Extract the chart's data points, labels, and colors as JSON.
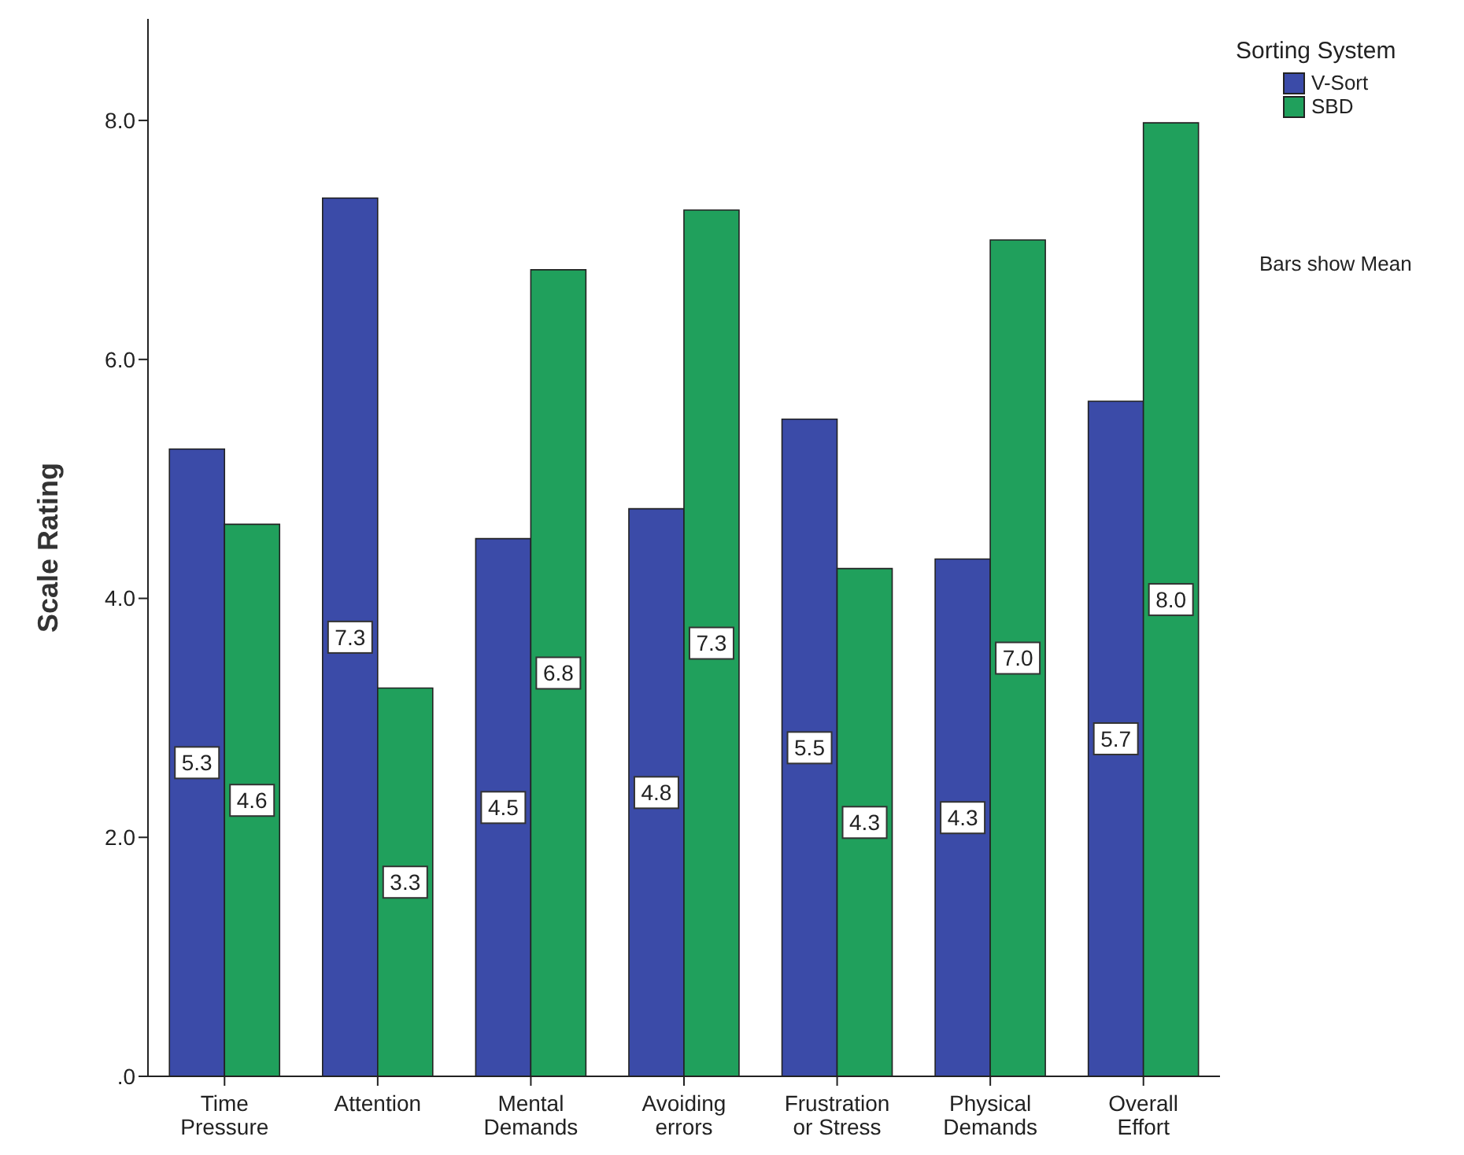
{
  "chart_data": {
    "type": "bar",
    "ylabel": "Scale Rating",
    "legend_title": "Sorting System",
    "legend": "top right",
    "grid": false,
    "categories": [
      "Time\nPressure",
      "Attention",
      "Mental\nDemands",
      "Avoiding\nerrors",
      "Frustration\nor Stress",
      "Physical\nDemands",
      "Overall\nEffort"
    ],
    "series": [
      {
        "name": "V-Sort",
        "color": "#3b4ba8",
        "values": [
          5.25,
          7.35,
          4.5,
          4.75,
          5.5,
          4.33,
          5.65
        ],
        "value_labels": [
          "5.3",
          "7.3",
          "4.5",
          "4.8",
          "5.5",
          "4.3",
          "5.7"
        ]
      },
      {
        "name": "SBD",
        "color": "#20a05c",
        "values": [
          4.62,
          3.25,
          6.75,
          7.25,
          4.25,
          7.0,
          7.98
        ],
        "value_labels": [
          "4.6",
          "3.3",
          "6.8",
          "7.3",
          "4.3",
          "7.0",
          "8.0"
        ]
      }
    ],
    "ylim": [
      0,
      8.85
    ],
    "yticks": [
      {
        "value": 0,
        "label": ".0"
      },
      {
        "value": 2,
        "label": "2.0"
      },
      {
        "value": 4,
        "label": "4.0"
      },
      {
        "value": 6,
        "label": "6.0"
      },
      {
        "value": 8,
        "label": "8.0"
      }
    ],
    "annotations": [
      "Bars show Mean"
    ]
  }
}
